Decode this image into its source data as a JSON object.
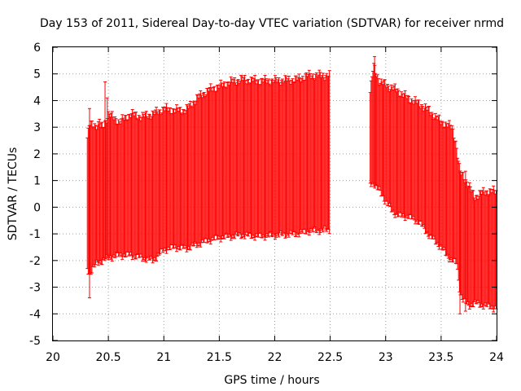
{
  "chart_data": {
    "type": "errorbar",
    "title": "Day 153 of 2011, Sidereal Day-to-day VTEC variation (SDTVAR) for receiver nrmd",
    "xlabel": "GPS time / hours",
    "ylabel": "SDTVAR / TECUs",
    "xlim": [
      20,
      24
    ],
    "ylim": [
      -5,
      6
    ],
    "xticks": [
      "20",
      "20.5",
      "21",
      "21.5",
      "22",
      "22.5",
      "23",
      "23.5",
      "24"
    ],
    "yticks": [
      "-5",
      "-4",
      "-3",
      "-2",
      "-1",
      "0",
      "1",
      "2",
      "3",
      "4",
      "5",
      "6"
    ],
    "grid": true,
    "series_color": "#ff0000",
    "segments": [
      {
        "name": "segment-1",
        "x_range": [
          20.31,
          22.5
        ],
        "step": 0.0083,
        "upper_profile": [
          [
            20.31,
            2.6
          ],
          [
            20.33,
            3.1
          ],
          [
            20.4,
            3.1
          ],
          [
            20.45,
            3.0
          ],
          [
            20.5,
            3.5
          ],
          [
            20.6,
            3.2
          ],
          [
            20.7,
            3.5
          ],
          [
            20.8,
            3.4
          ],
          [
            20.9,
            3.5
          ],
          [
            21.0,
            3.7
          ],
          [
            21.1,
            3.65
          ],
          [
            21.2,
            3.65
          ],
          [
            21.3,
            4.1
          ],
          [
            21.4,
            4.4
          ],
          [
            21.5,
            4.55
          ],
          [
            21.6,
            4.7
          ],
          [
            21.7,
            4.8
          ],
          [
            21.85,
            4.75
          ],
          [
            22.0,
            4.75
          ],
          [
            22.2,
            4.8
          ],
          [
            22.3,
            4.95
          ],
          [
            22.5,
            4.95
          ]
        ],
        "lower_profile": [
          [
            20.31,
            -2.3
          ],
          [
            20.33,
            -2.5
          ],
          [
            20.36,
            -2.3
          ],
          [
            20.4,
            -2.1
          ],
          [
            20.5,
            -1.9
          ],
          [
            20.6,
            -1.8
          ],
          [
            20.7,
            -1.8
          ],
          [
            20.8,
            -1.9
          ],
          [
            20.9,
            -2.0
          ],
          [
            21.0,
            -1.6
          ],
          [
            21.1,
            -1.5
          ],
          [
            21.2,
            -1.55
          ],
          [
            21.3,
            -1.4
          ],
          [
            21.4,
            -1.25
          ],
          [
            21.5,
            -1.15
          ],
          [
            21.6,
            -1.1
          ],
          [
            21.7,
            -1.05
          ],
          [
            21.85,
            -1.1
          ],
          [
            22.0,
            -1.05
          ],
          [
            22.2,
            -1.0
          ],
          [
            22.3,
            -0.9
          ],
          [
            22.5,
            -0.85
          ]
        ],
        "spikes": [
          {
            "x": 20.33,
            "upper": 3.7,
            "lower": -3.4
          },
          {
            "x": 20.42,
            "upper": 3.3,
            "lower": -2.0
          },
          {
            "x": 20.47,
            "upper": 4.7,
            "lower": -1.9
          },
          {
            "x": 20.49,
            "upper": 4.1,
            "lower": -1.9
          }
        ]
      },
      {
        "name": "segment-2",
        "x_range": [
          22.86,
          24.0
        ],
        "step": 0.0083,
        "upper_profile": [
          [
            22.86,
            4.3
          ],
          [
            22.89,
            5.3
          ],
          [
            22.92,
            5.0
          ],
          [
            22.95,
            4.7
          ],
          [
            23.0,
            4.6
          ],
          [
            23.1,
            4.4
          ],
          [
            23.2,
            4.1
          ],
          [
            23.3,
            3.9
          ],
          [
            23.4,
            3.6
          ],
          [
            23.5,
            3.2
          ],
          [
            23.55,
            3.1
          ],
          [
            23.6,
            3.0
          ],
          [
            23.63,
            2.5
          ],
          [
            23.67,
            1.3
          ],
          [
            23.7,
            1.2
          ],
          [
            23.75,
            0.8
          ],
          [
            23.8,
            0.4
          ],
          [
            23.9,
            0.6
          ],
          [
            24.0,
            0.6
          ]
        ],
        "lower_profile": [
          [
            22.86,
            0.9
          ],
          [
            22.89,
            0.9
          ],
          [
            22.92,
            0.7
          ],
          [
            22.95,
            0.6
          ],
          [
            23.0,
            0.2
          ],
          [
            23.05,
            -0.1
          ],
          [
            23.1,
            -0.3
          ],
          [
            23.2,
            -0.35
          ],
          [
            23.3,
            -0.55
          ],
          [
            23.4,
            -1.1
          ],
          [
            23.5,
            -1.5
          ],
          [
            23.55,
            -1.8
          ],
          [
            23.6,
            -2.0
          ],
          [
            23.64,
            -2.1
          ],
          [
            23.67,
            -3.2
          ],
          [
            23.7,
            -3.5
          ],
          [
            23.75,
            -3.7
          ],
          [
            23.8,
            -3.6
          ],
          [
            23.9,
            -3.7
          ],
          [
            24.0,
            -3.8
          ]
        ],
        "spikes": [
          {
            "x": 22.9,
            "upper": 5.65,
            "lower": 0.9
          },
          {
            "x": 23.67,
            "upper": 1.3,
            "lower": -4.0
          },
          {
            "x": 23.72,
            "upper": 1.35,
            "lower": -3.9
          }
        ]
      }
    ]
  }
}
